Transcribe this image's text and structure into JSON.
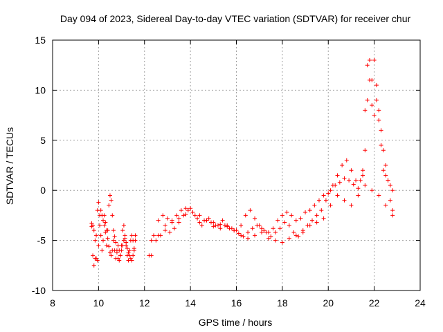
{
  "chart_data": {
    "type": "scatter",
    "title": "Day 094 of 2023, Sidereal Day-to-day VTEC variation (SDTVAR) for receiver chur",
    "xlabel": "GPS time / hours",
    "ylabel": "SDTVAR / TECUs",
    "xlim": [
      8,
      24
    ],
    "ylim": [
      -10,
      15
    ],
    "x_ticks": [
      "8",
      "10",
      "12",
      "14",
      "16",
      "18",
      "20",
      "22",
      "24"
    ],
    "y_ticks": [
      "-10",
      "-5",
      "0",
      "5",
      "10",
      "15"
    ],
    "grid": true,
    "marker": "+",
    "color": "#ff0000",
    "series": [
      {
        "name": "SDTVAR",
        "x": [
          9.7,
          9.75,
          9.8,
          9.85,
          9.9,
          9.95,
          10.0,
          10.05,
          10.1,
          10.15,
          10.2,
          10.25,
          10.3,
          10.35,
          10.4,
          10.45,
          10.5,
          10.55,
          10.6,
          10.65,
          10.7,
          10.75,
          10.8,
          10.85,
          10.9,
          10.95,
          11.0,
          11.05,
          11.1,
          11.15,
          11.2,
          11.25,
          11.3,
          11.35,
          11.4,
          11.45,
          11.5,
          11.55,
          11.6,
          9.7,
          9.75,
          9.8,
          9.85,
          9.9,
          9.95,
          10.0,
          10.05,
          10.1,
          10.15,
          10.2,
          10.25,
          10.3,
          10.35,
          10.4,
          10.45,
          10.5,
          10.55,
          10.6,
          10.65,
          10.7,
          10.75,
          10.8,
          10.85,
          10.9,
          10.95,
          11.0,
          11.05,
          11.1,
          11.15,
          11.2,
          11.25,
          11.3,
          11.35,
          11.4,
          11.45,
          11.5,
          11.55,
          11.6,
          12.2,
          12.4,
          12.6,
          12.8,
          13.0,
          13.2,
          13.4,
          13.6,
          13.8,
          14.0,
          14.2,
          14.4,
          14.6,
          14.8,
          15.0,
          15.2,
          15.4,
          15.6,
          15.8,
          16.0,
          16.2,
          16.4,
          16.6,
          16.8,
          17.0,
          17.2,
          17.4,
          17.6,
          17.8,
          18.0,
          18.2,
          18.4,
          18.6,
          18.8,
          19.0,
          19.2,
          19.4,
          19.6,
          19.8,
          20.0,
          20.2,
          20.4,
          20.6,
          20.8,
          21.0,
          21.2,
          21.4,
          21.5,
          21.6,
          21.7,
          21.8,
          21.9,
          22.0,
          22.1,
          22.2,
          22.3,
          22.4,
          22.5,
          22.6,
          22.7,
          22.8,
          12.3,
          12.5,
          12.7,
          12.9,
          13.1,
          13.3,
          13.5,
          13.7,
          13.9,
          14.1,
          14.3,
          14.5,
          14.7,
          14.9,
          15.1,
          15.3,
          15.5,
          15.7,
          15.9,
          16.1,
          16.3,
          16.5,
          16.7,
          16.9,
          17.1,
          17.3,
          17.5,
          17.7,
          17.9,
          18.1,
          18.3,
          18.5,
          18.7,
          18.9,
          19.1,
          19.3,
          19.5,
          19.7,
          19.9,
          20.1,
          20.3,
          20.5,
          20.7,
          20.9,
          21.1,
          21.3,
          21.5,
          21.6,
          21.7,
          21.8,
          21.9,
          22.0,
          22.1,
          22.2,
          22.3,
          22.4,
          22.5,
          22.6,
          22.7,
          22.8,
          12.3,
          12.6,
          12.9,
          13.2,
          13.5,
          13.8,
          14.1,
          14.4,
          14.7,
          15.0,
          15.3,
          15.6,
          15.9,
          16.2,
          16.5,
          16.8,
          17.1,
          17.4,
          17.7,
          18.0,
          18.3,
          18.6,
          18.9,
          19.2,
          19.5,
          19.8,
          20.1,
          20.4,
          20.7,
          21.0,
          21.3,
          21.6,
          21.9,
          22.2,
          22.5,
          22.8
        ],
        "y": [
          -3.3,
          -6.5,
          -7.5,
          -6.8,
          -4.5,
          -2.0,
          -1.2,
          -2.5,
          -4.5,
          -6.0,
          -5.0,
          -3.5,
          -4.2,
          -5.5,
          -4.0,
          -1.5,
          -0.5,
          -1.0,
          -2.5,
          -4.0,
          -6.0,
          -6.8,
          -6.2,
          -5.5,
          -6.0,
          -6.5,
          -5.5,
          -4.0,
          -3.5,
          -4.5,
          -5.5,
          -6.5,
          -7.0,
          -6.0,
          -5.0,
          -4.5,
          -5.0,
          -6.0,
          -4.5,
          -3.6,
          -3.5,
          -4.0,
          -5.0,
          -6.8,
          -7.0,
          -5.5,
          -3.5,
          -2.0,
          -2.5,
          -3.0,
          -2.5,
          -3.2,
          -4.0,
          -4.8,
          -5.6,
          -6.2,
          -6.5,
          -6.0,
          -5.0,
          -4.6,
          -5.2,
          -6.0,
          -6.8,
          -7.0,
          -6.5,
          -6.0,
          -5.5,
          -5.0,
          -4.8,
          -5.2,
          -5.8,
          -6.2,
          -6.5,
          -6.8,
          -7.0,
          -6.5,
          -5.8,
          -5.0,
          -6.5,
          -4.5,
          -3.0,
          -2.5,
          -2.8,
          -3.0,
          -2.5,
          -2.0,
          -1.8,
          -1.8,
          -2.5,
          -3.2,
          -3.0,
          -2.8,
          -3.2,
          -3.5,
          -3.0,
          -3.5,
          -3.8,
          -4.0,
          -3.5,
          -2.5,
          -2.0,
          -2.8,
          -3.5,
          -4.0,
          -4.2,
          -3.8,
          -3.0,
          -2.5,
          -2.2,
          -2.5,
          -3.0,
          -2.8,
          -2.2,
          -2.0,
          -1.5,
          -1.0,
          -0.5,
          -0.3,
          0.5,
          1.5,
          2.5,
          3.0,
          2.0,
          1.0,
          1.0,
          2.0,
          8.0,
          12.5,
          13.0,
          11.0,
          13.0,
          10.5,
          7.0,
          4.5,
          2.0,
          1.5,
          1.0,
          0.5,
          0.0,
          -6.5,
          -5.0,
          -4.5,
          -4.0,
          -4.2,
          -3.8,
          -3.2,
          -2.5,
          -2.0,
          -2.2,
          -2.8,
          -3.5,
          -3.0,
          -3.2,
          -3.5,
          -3.8,
          -3.5,
          -3.8,
          -4.0,
          -4.3,
          -4.6,
          -4.2,
          -3.8,
          -3.5,
          -3.8,
          -4.2,
          -4.6,
          -4.2,
          -3.8,
          -3.2,
          -3.5,
          -4.2,
          -4.6,
          -4.0,
          -3.5,
          -3.0,
          -2.5,
          -2.0,
          -1.0,
          0.0,
          0.5,
          0.8,
          1.2,
          1.0,
          0.6,
          0.2,
          1.5,
          4.0,
          9.0,
          11.0,
          8.5,
          7.5,
          9.0,
          8.0,
          6.0,
          4.0,
          2.5,
          1.0,
          -1.0,
          -2.0,
          -5.0,
          -4.5,
          -3.5,
          -3.2,
          -2.8,
          -2.4,
          -2.2,
          -2.5,
          -3.0,
          -3.6,
          -3.4,
          -3.6,
          -4.0,
          -4.5,
          -4.8,
          -4.5,
          -4.2,
          -4.8,
          -5.0,
          -5.2,
          -4.8,
          -4.5,
          -4.2,
          -3.5,
          -3.2,
          -2.8,
          -1.5,
          -0.5,
          -1.0,
          -1.5,
          -0.5,
          0.5,
          0.0,
          -0.5,
          -1.5,
          -2.5
        ]
      }
    ]
  }
}
